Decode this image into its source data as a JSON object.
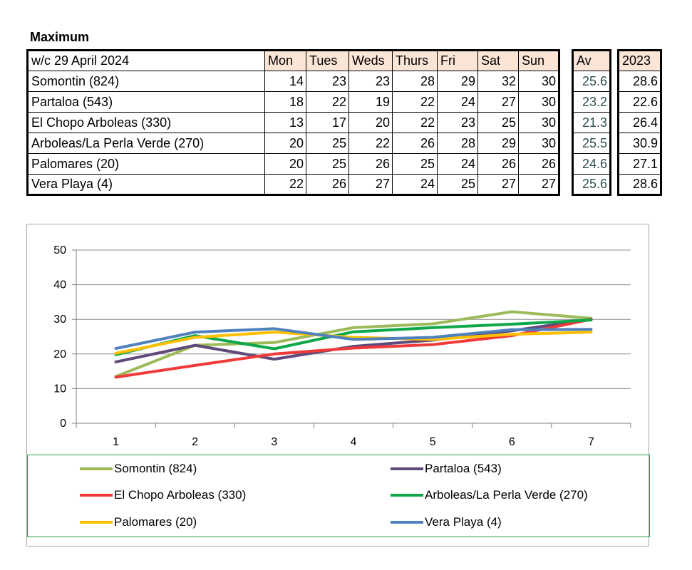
{
  "title": "Maximum",
  "table": {
    "header_label": "w/c  29 April 2024",
    "days": [
      "Mon",
      "Tues",
      "Weds",
      "Thurs",
      "Fri",
      "Sat",
      "Sun"
    ],
    "av_label": "Av",
    "prev_label": "2023",
    "rows": [
      {
        "name": "Somontin (824)",
        "values": [
          "14",
          "23",
          "23",
          "28",
          "29",
          "32",
          "30"
        ],
        "av": "25.6",
        "prev": "28.6"
      },
      {
        "name": "Partaloa (543)",
        "values": [
          "18",
          "22",
          "19",
          "22",
          "24",
          "27",
          "30"
        ],
        "av": "23.2",
        "prev": "22.6"
      },
      {
        "name": "El Chopo  Arboleas (330)",
        "values": [
          "13",
          "17",
          "20",
          "22",
          "23",
          "25",
          "30"
        ],
        "av": "21.3",
        "prev": "26.4"
      },
      {
        "name": "Arboleas/La Perla Verde (270)",
        "values": [
          "20",
          "25",
          "22",
          "26",
          "28",
          "29",
          "30"
        ],
        "av": "25.5",
        "prev": "30.9"
      },
      {
        "name": "Palomares (20)",
        "values": [
          "20",
          "25",
          "26",
          "25",
          "24",
          "26",
          "26"
        ],
        "av": "24.6",
        "prev": "27.1"
      },
      {
        "name": "Vera Playa (4)",
        "values": [
          "22",
          "26",
          "27",
          "24",
          "25",
          "27",
          "27"
        ],
        "av": "25.6",
        "prev": "28.6"
      }
    ]
  },
  "chart_data": {
    "type": "line",
    "x": [
      1,
      2,
      3,
      4,
      5,
      6,
      7
    ],
    "ylim": [
      0,
      50
    ],
    "yticks": [
      0,
      10,
      20,
      30,
      40,
      50
    ],
    "grid": true,
    "legend_position": "bottom",
    "series": [
      {
        "name": "Somontin (824)",
        "color": "#9bbb59",
        "values": [
          13.5,
          22.5,
          23.3,
          27.6,
          28.7,
          32.2,
          30.3
        ]
      },
      {
        "name": "Partaloa (543)",
        "color": "#604a7b",
        "values": [
          17.7,
          22.5,
          18.5,
          22.2,
          24.0,
          26.7,
          30.0
        ]
      },
      {
        "name": "El Chopo  Arboleas (330)",
        "color": "#f03a3a",
        "values": [
          13.3,
          16.7,
          20.0,
          21.7,
          22.7,
          25.3,
          30.0
        ]
      },
      {
        "name": "Arboleas/La Perla Verde (270)",
        "color": "#0ea84a",
        "values": [
          19.8,
          25.3,
          21.5,
          26.4,
          27.6,
          28.6,
          29.8
        ]
      },
      {
        "name": "Palomares (20)",
        "color": "#ffc000",
        "values": [
          20.2,
          24.8,
          26.3,
          24.8,
          24.2,
          25.7,
          26.3
        ]
      },
      {
        "name": "Vera Playa (4)",
        "color": "#4f81bd",
        "values": [
          21.6,
          26.3,
          27.3,
          24.2,
          24.8,
          27.0,
          27.1
        ]
      }
    ]
  }
}
